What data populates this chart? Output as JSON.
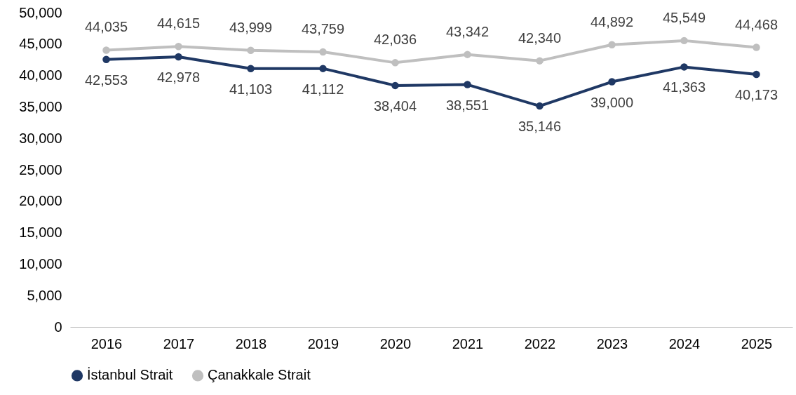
{
  "chart_data": {
    "type": "line",
    "categories": [
      "2016",
      "2017",
      "2018",
      "2019",
      "2020",
      "2021",
      "2022",
      "2023",
      "2024",
      "2025"
    ],
    "series": [
      {
        "name": "İstanbul Strait",
        "color": "#1f3864",
        "values": [
          42553,
          42978,
          41103,
          41112,
          38404,
          38551,
          35146,
          39000,
          41363,
          40173
        ],
        "value_labels": [
          "42,553",
          "42,978",
          "41,103",
          "41,112",
          "38,404",
          "38,551",
          "35,146",
          "39,000",
          "41,363",
          "40,173"
        ]
      },
      {
        "name": "Çanakkale Strait",
        "color": "#bfbfbf",
        "values": [
          44035,
          44615,
          43999,
          43759,
          42036,
          43342,
          42340,
          44892,
          45549,
          44468
        ],
        "value_labels": [
          "44,035",
          "44,615",
          "43,999",
          "43,759",
          "42,036",
          "43,342",
          "42,340",
          "44,892",
          "45,549",
          "44,468"
        ]
      }
    ],
    "ylim": [
      0,
      50000
    ],
    "yticks": [
      0,
      {
        "value": 5000,
        "label": "5,000"
      },
      {
        "value": 10000,
        "label": "10,000"
      },
      {
        "value": 15000,
        "label": "15,000"
      },
      {
        "value": 20000,
        "label": "20,000"
      },
      {
        "value": 25000,
        "label": "25,000"
      },
      {
        "value": 30000,
        "label": "30,000"
      },
      {
        "value": 35000,
        "label": "35,000"
      },
      {
        "value": 40000,
        "label": "40,000"
      },
      {
        "value": 45000,
        "label": "45,000"
      },
      {
        "value": 50000,
        "label": "50,000"
      }
    ],
    "legend": "bottom",
    "grid": false,
    "marker": "circle",
    "line_style": "solid"
  }
}
